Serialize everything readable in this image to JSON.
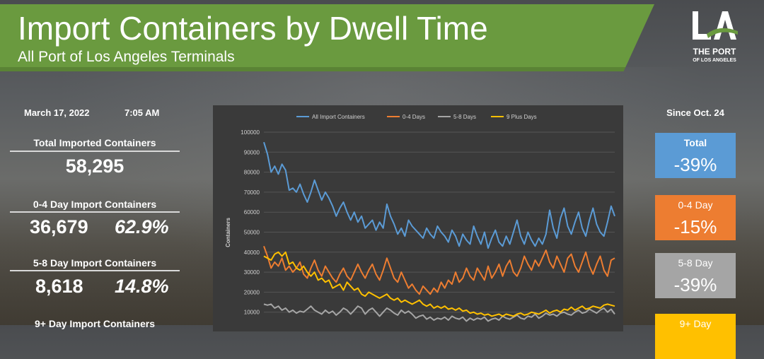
{
  "header": {
    "title": "Import Containers by Dwell Time",
    "subtitle": "All Port of Los Angeles Terminals"
  },
  "logo": {
    "mark": "LA",
    "line1": "THE PORT",
    "line2": "OF LOS ANGELES"
  },
  "left_panel": {
    "date": "March 17, 2022",
    "time": "7:05 AM",
    "total_label": "Total Imported Containers",
    "total_value": "58,295",
    "days_0_4_label": "0-4 Day Import Containers",
    "days_0_4_value": "36,679",
    "days_0_4_pct": "62.9%",
    "days_5_8_label": "5-8 Day Import Containers",
    "days_5_8_value": "8,618",
    "days_5_8_pct": "14.8%",
    "days_9_label": "9+ Day Import Containers"
  },
  "right_panel": {
    "since": "Since Oct. 24",
    "cards": [
      {
        "label": "Total",
        "value": "-39%",
        "color": "#5b9bd5"
      },
      {
        "label": "0-4 Day",
        "value": "-15%",
        "color": "#ed7d31"
      },
      {
        "label": "5-8 Day",
        "value": "-39%",
        "color": "#a5a5a5"
      },
      {
        "label": "9+ Day",
        "value": "",
        "color": "#ffc000"
      }
    ]
  },
  "chart_data": {
    "type": "line",
    "title": "",
    "xlabel": "",
    "ylabel": "Containers",
    "ylim": [
      0,
      100000
    ],
    "y_ticks": [
      "100000",
      "90000",
      "80000",
      "70000",
      "60000",
      "50000",
      "40000",
      "30000",
      "20000",
      "10000"
    ],
    "legend_position": "top",
    "series": [
      {
        "name": "All Import Containers",
        "color": "#5b9bd5",
        "values": [
          95000,
          89000,
          80000,
          83000,
          79000,
          84000,
          81000,
          71000,
          72000,
          70000,
          74000,
          69000,
          65000,
          70000,
          76000,
          71000,
          66000,
          70000,
          67000,
          63000,
          58000,
          62000,
          65000,
          60000,
          56000,
          60000,
          55000,
          58000,
          52000,
          54000,
          56000,
          51000,
          55000,
          52000,
          64000,
          58000,
          54000,
          49000,
          52000,
          48000,
          56000,
          53000,
          51000,
          49000,
          47000,
          52000,
          49000,
          47000,
          53000,
          50000,
          48000,
          45000,
          51000,
          48000,
          43000,
          49000,
          46000,
          44000,
          53000,
          48000,
          44000,
          50000,
          42000,
          47000,
          51000,
          45000,
          43000,
          48000,
          44000,
          50000,
          56000,
          48000,
          44000,
          50000,
          46000,
          43000,
          47000,
          44000,
          49000,
          61000,
          52000,
          47000,
          57000,
          62000,
          53000,
          49000,
          55000,
          60000,
          52000,
          48000,
          56000,
          62000,
          54000,
          50000,
          48000,
          55000,
          63000,
          58000
        ]
      },
      {
        "name": "0-4 Days",
        "color": "#ed7d31",
        "values": [
          43000,
          38000,
          32000,
          35000,
          33000,
          37000,
          31000,
          33000,
          30000,
          32000,
          35000,
          29000,
          27000,
          32000,
          36000,
          31000,
          28000,
          33000,
          30000,
          27000,
          25000,
          29000,
          32000,
          28000,
          26000,
          30000,
          34000,
          30000,
          27000,
          31000,
          34000,
          29000,
          26000,
          31000,
          37000,
          32000,
          27000,
          25000,
          30000,
          26000,
          22000,
          24000,
          21000,
          19000,
          23000,
          21000,
          19000,
          22000,
          20000,
          25000,
          22000,
          26000,
          24000,
          30000,
          25000,
          27000,
          32000,
          28000,
          26000,
          32000,
          29000,
          26000,
          33000,
          27000,
          30000,
          34000,
          28000,
          33000,
          36000,
          30000,
          28000,
          32000,
          38000,
          34000,
          31000,
          36000,
          33000,
          37000,
          41000,
          35000,
          32000,
          38000,
          34000,
          30000,
          37000,
          39000,
          33000,
          30000,
          35000,
          40000,
          33000,
          29000,
          34000,
          38000,
          31000,
          28000,
          36000,
          37000
        ]
      },
      {
        "name": "5-8 Days",
        "color": "#a5a5a5",
        "values": [
          14000,
          13500,
          14000,
          12000,
          13000,
          11000,
          12000,
          10000,
          11000,
          9500,
          10500,
          10000,
          11500,
          13000,
          11000,
          10000,
          9000,
          11000,
          9500,
          10500,
          8500,
          10000,
          12000,
          11000,
          9000,
          11000,
          13000,
          12000,
          9000,
          11000,
          12000,
          10000,
          8000,
          10000,
          12000,
          11000,
          9500,
          8500,
          11000,
          9500,
          10500,
          9000,
          7000,
          8000,
          8500,
          6500,
          7500,
          6000,
          7000,
          6500,
          7500,
          6000,
          8000,
          7000,
          6500,
          7500,
          5500,
          7000,
          6000,
          7000,
          6500,
          7500,
          5500,
          6500,
          7000,
          6000,
          8000,
          7000,
          6500,
          7500,
          8500,
          7000,
          6500,
          8000,
          7500,
          9000,
          7000,
          8000,
          9500,
          8500,
          9000,
          8000,
          9500,
          10000,
          9000,
          8500,
          10000,
          11000,
          9500,
          10000,
          11500,
          10500,
          9500,
          11000,
          12000,
          10000,
          11500,
          9000
        ]
      },
      {
        "name": "9 Plus Days",
        "color": "#ffc000",
        "values": [
          38000,
          37000,
          36000,
          39000,
          40000,
          38000,
          40000,
          34000,
          35000,
          32000,
          31000,
          33000,
          30000,
          28000,
          30000,
          26000,
          27000,
          25000,
          26000,
          22000,
          23000,
          24000,
          21000,
          25000,
          23000,
          21000,
          22000,
          19000,
          18000,
          20000,
          19000,
          18000,
          17000,
          18000,
          19000,
          17000,
          16000,
          17000,
          15000,
          16000,
          15000,
          14000,
          15000,
          16000,
          14000,
          13000,
          14000,
          12000,
          13000,
          12000,
          13000,
          11500,
          12000,
          11000,
          12000,
          10500,
          11000,
          9500,
          10000,
          9000,
          9500,
          8500,
          9000,
          8000,
          8500,
          9000,
          8000,
          9000,
          8500,
          8000,
          9000,
          9500,
          8500,
          9000,
          10000,
          9500,
          9000,
          10000,
          11000,
          9500,
          10500,
          11000,
          10000,
          11500,
          11000,
          12500,
          11000,
          12000,
          13000,
          11500,
          12000,
          13000,
          12500,
          12000,
          13500,
          14000,
          13500,
          13000
        ]
      }
    ]
  }
}
